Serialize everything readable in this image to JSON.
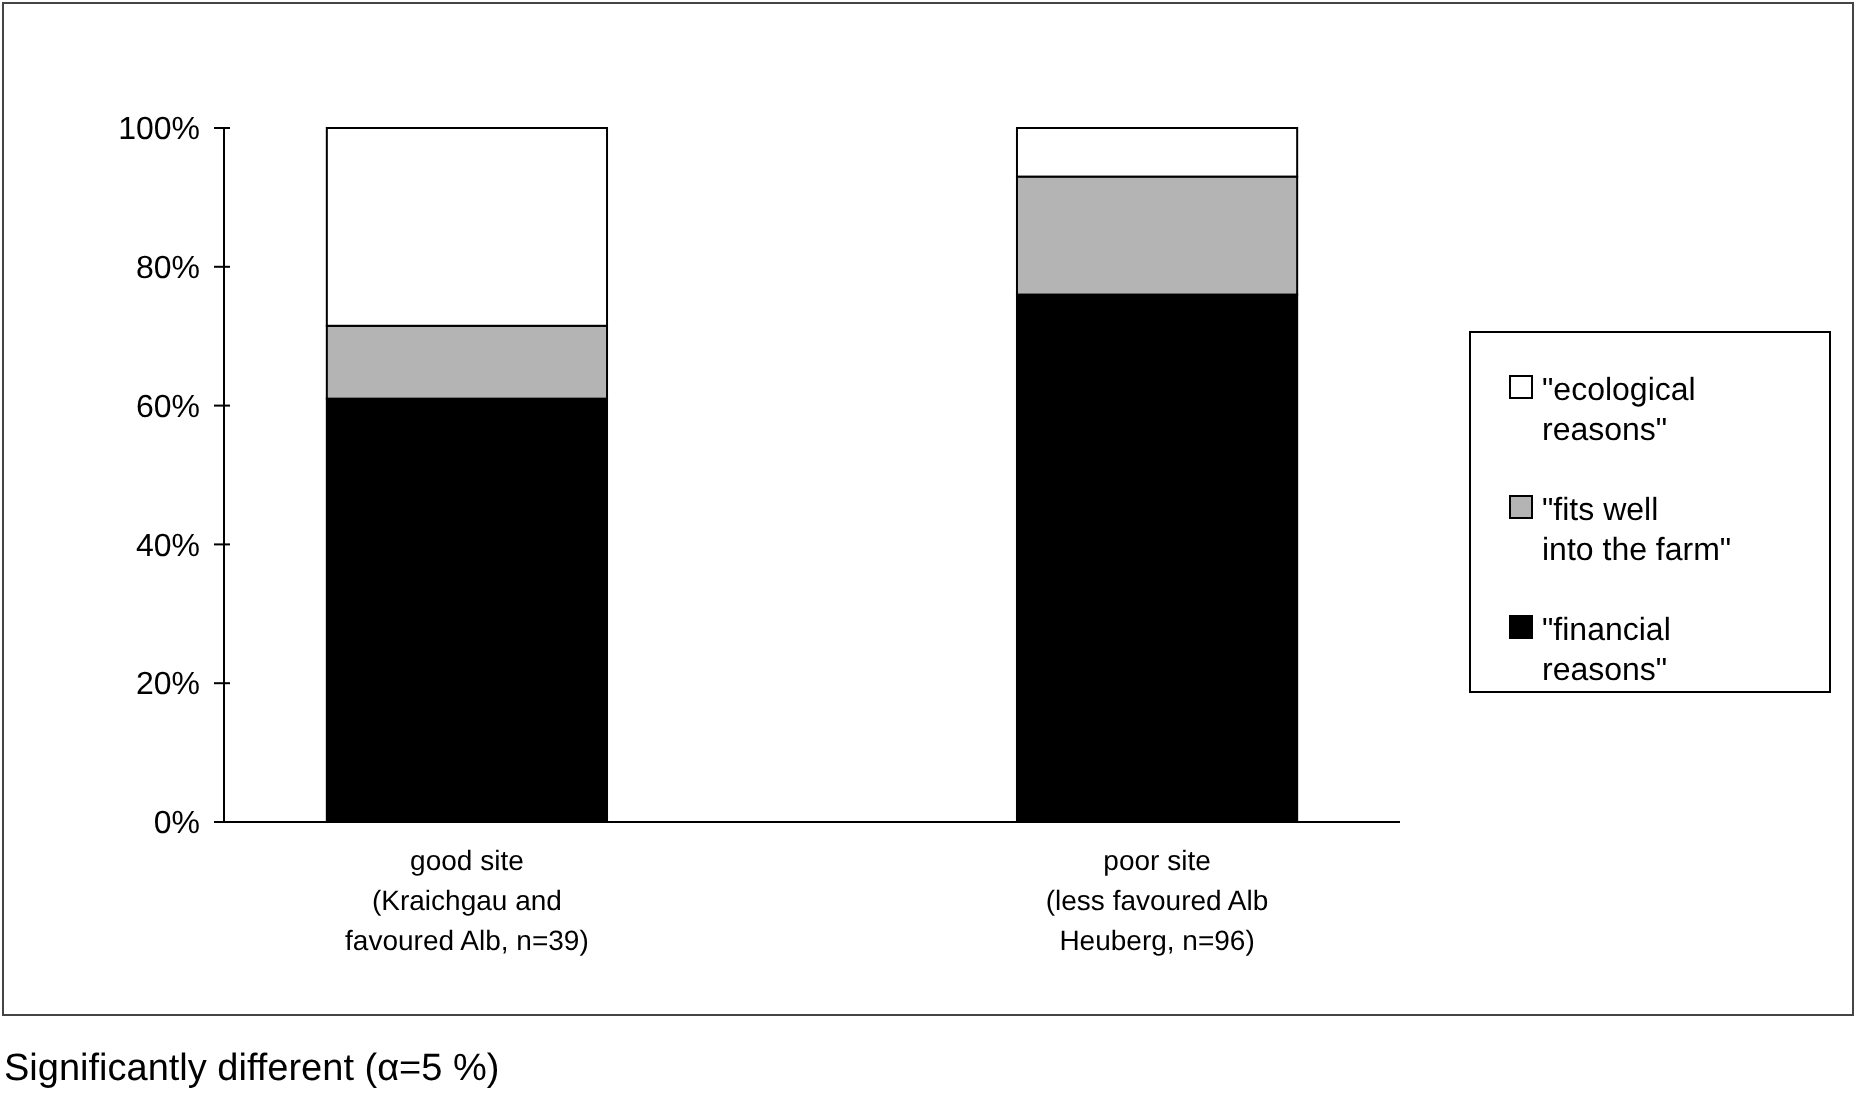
{
  "chart_data": {
    "type": "bar",
    "stacked": true,
    "categories": [
      "good site\n(Kraichgau and\nfavoured Alb, n=39)",
      "poor site\n(less favoured Alb\nHeuberg, n=96)"
    ],
    "series": [
      {
        "name": "\"financial reasons\"",
        "color": "#000000",
        "values": [
          61,
          76
        ]
      },
      {
        "name": "\"fits well into the farm\"",
        "color": "#b4b4b4",
        "values": [
          10.5,
          17
        ]
      },
      {
        "name": "\"ecological reasons\"",
        "color": "#ffffff",
        "values": [
          28.5,
          7
        ]
      }
    ],
    "ylim": [
      0,
      100
    ],
    "yticks": [
      {
        "value": 0,
        "label": "0%"
      },
      {
        "value": 20,
        "label": "20%"
      },
      {
        "value": 40,
        "label": "40%"
      },
      {
        "value": 60,
        "label": "60%"
      },
      {
        "value": 80,
        "label": "80%"
      },
      {
        "value": 100,
        "label": "100%"
      }
    ],
    "grid": false,
    "legend": "right",
    "annotations": [
      "Significantly different (α=5 %)"
    ]
  }
}
